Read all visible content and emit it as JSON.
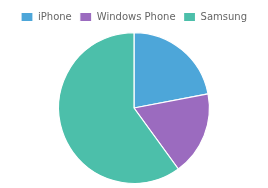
{
  "chart_data": {
    "type": "pie",
    "categories": [
      "iPhone",
      "Windows Phone",
      "Samsung"
    ],
    "values": [
      22,
      18,
      60
    ],
    "colors": [
      "#4da6d9",
      "#9b6bbf",
      "#4cbfaa"
    ],
    "legend": "top"
  }
}
